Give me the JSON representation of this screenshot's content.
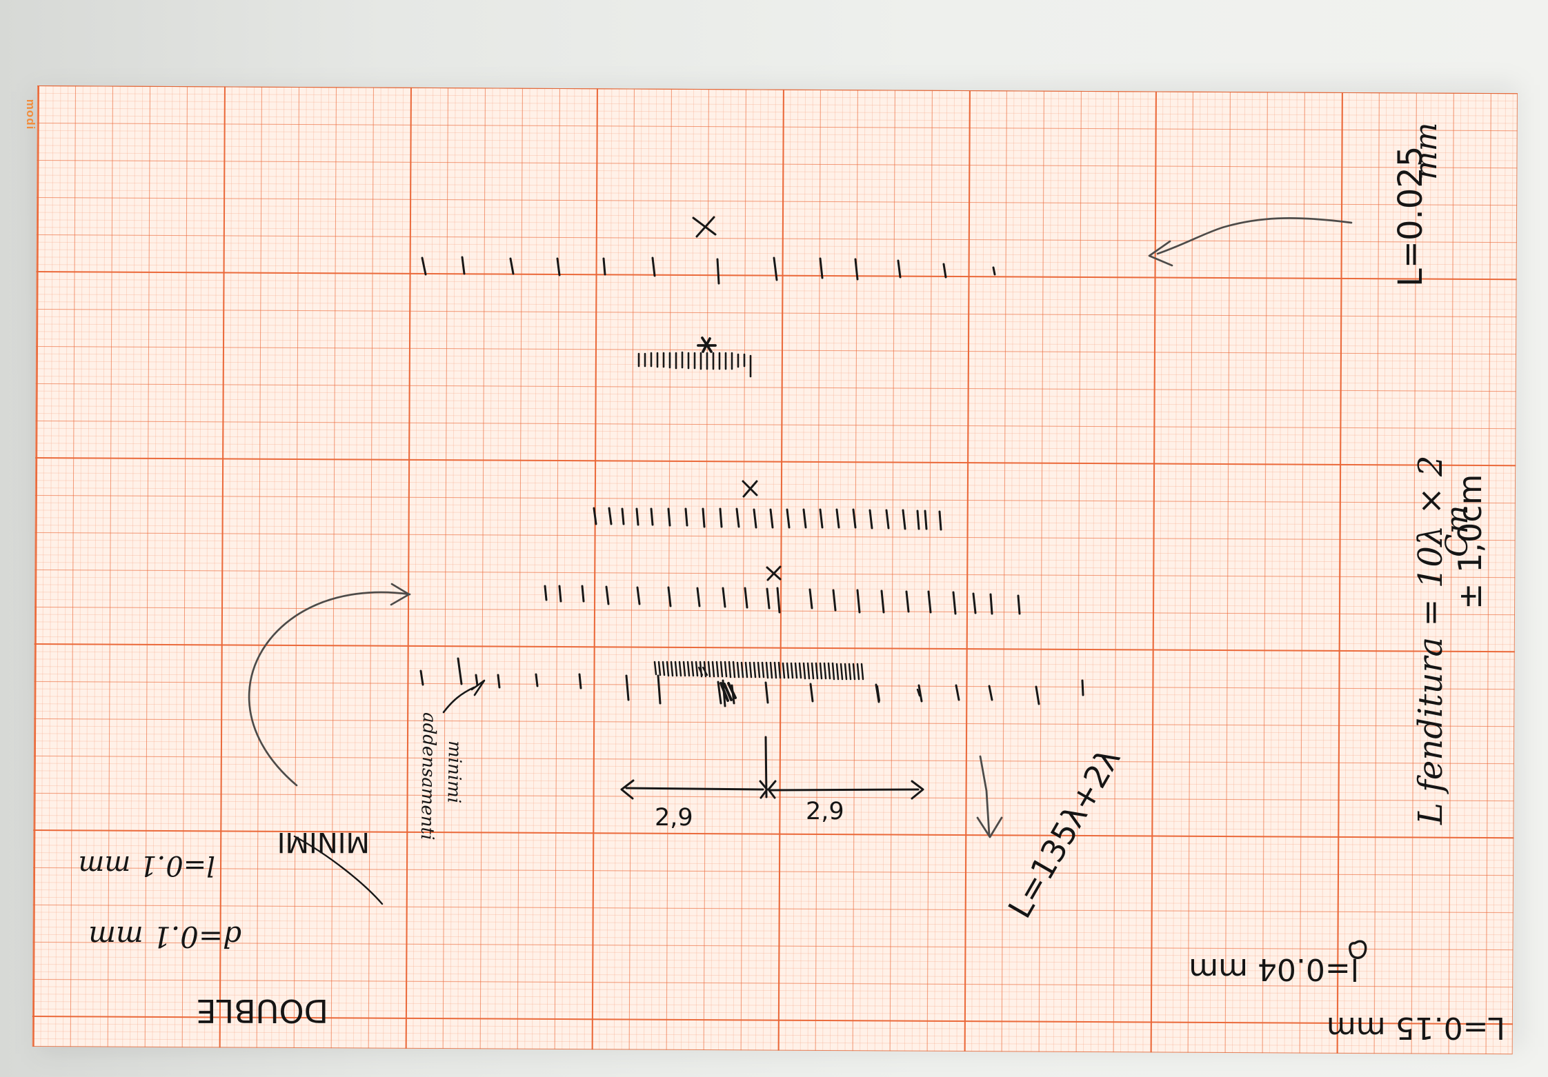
{
  "photo": {
    "paper_brand": "modi",
    "annotations": {
      "distance_left": "2,9",
      "distance_right": "2,9",
      "left_label_1": "addensamenti",
      "left_label_2": "minimi",
      "double_label": "DOUBLE",
      "double_d_value": "d=0.1 mm",
      "double_l_value": "l=0.1 mm",
      "double_minimi": "MINIMI",
      "top_right_length": "L=0.025",
      "top_right_unit": "mm",
      "right_formula_main": "L fenditura = 10λ × 2",
      "right_formula_units": "Cm",
      "right_formula_extra": "± 1,0cm",
      "middle_formula": "L=135λ+2λ",
      "bottom_right_1": "L=0.15 mm",
      "bottom_right_2": "l=0.04 mm"
    },
    "colors": {
      "paper": "#fff1e8",
      "grid_major": "#ea6636",
      "grid_minor": "#f59773",
      "ink": "#171717",
      "brand": "#f28b3a"
    }
  }
}
